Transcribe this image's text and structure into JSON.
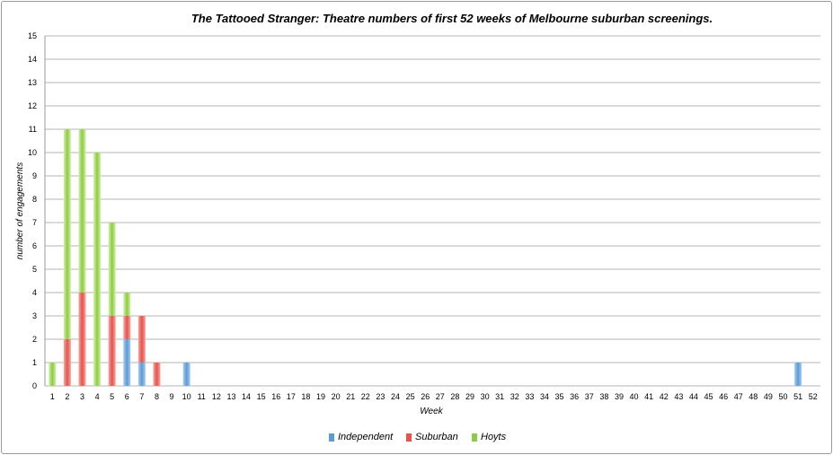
{
  "chart_data": {
    "type": "bar",
    "stacked": true,
    "title": "The Tattooed Stranger: Theatre numbers of first 52 weeks of Melbourne suburban screenings.",
    "xlabel": "Week",
    "ylabel": "number of engagements",
    "ylim": [
      0,
      15
    ],
    "yticks": [
      "0",
      "1",
      "2",
      "3",
      "4",
      "5",
      "6",
      "7",
      "8",
      "9",
      "10",
      "11",
      "12",
      "13",
      "14",
      "15"
    ],
    "categories": [
      "1",
      "2",
      "3",
      "4",
      "5",
      "6",
      "7",
      "8",
      "9",
      "10",
      "11",
      "12",
      "13",
      "14",
      "15",
      "16",
      "17",
      "18",
      "19",
      "20",
      "21",
      "22",
      "23",
      "24",
      "25",
      "26",
      "27",
      "28",
      "29",
      "30",
      "31",
      "32",
      "33",
      "34",
      "35",
      "36",
      "37",
      "38",
      "39",
      "40",
      "41",
      "42",
      "43",
      "44",
      "45",
      "46",
      "47",
      "48",
      "49",
      "50",
      "51",
      "52"
    ],
    "series": [
      {
        "name": "Independent",
        "color": "#5b9bd5",
        "values": [
          0,
          0,
          0,
          0,
          0,
          2,
          1,
          0,
          0,
          1,
          0,
          0,
          0,
          0,
          0,
          0,
          0,
          0,
          0,
          0,
          0,
          0,
          0,
          0,
          0,
          0,
          0,
          0,
          0,
          0,
          0,
          0,
          0,
          0,
          0,
          0,
          0,
          0,
          0,
          0,
          0,
          0,
          0,
          0,
          0,
          0,
          0,
          0,
          0,
          0,
          1,
          0
        ]
      },
      {
        "name": "Suburban",
        "color": "#e8524a",
        "values": [
          0,
          2,
          4,
          0,
          3,
          1,
          2,
          1,
          0,
          0,
          0,
          0,
          0,
          0,
          0,
          0,
          0,
          0,
          0,
          0,
          0,
          0,
          0,
          0,
          0,
          0,
          0,
          0,
          0,
          0,
          0,
          0,
          0,
          0,
          0,
          0,
          0,
          0,
          0,
          0,
          0,
          0,
          0,
          0,
          0,
          0,
          0,
          0,
          0,
          0,
          0,
          0
        ]
      },
      {
        "name": "Hoyts",
        "color": "#8ccc44",
        "values": [
          1,
          9,
          7,
          10,
          4,
          1,
          0,
          0,
          0,
          0,
          0,
          0,
          0,
          0,
          0,
          0,
          0,
          0,
          0,
          0,
          0,
          0,
          0,
          0,
          0,
          0,
          0,
          0,
          0,
          0,
          0,
          0,
          0,
          0,
          0,
          0,
          0,
          0,
          0,
          0,
          0,
          0,
          0,
          0,
          0,
          0,
          0,
          0,
          0,
          0,
          0,
          0
        ]
      }
    ],
    "grid": true,
    "legend_position": "bottom"
  }
}
